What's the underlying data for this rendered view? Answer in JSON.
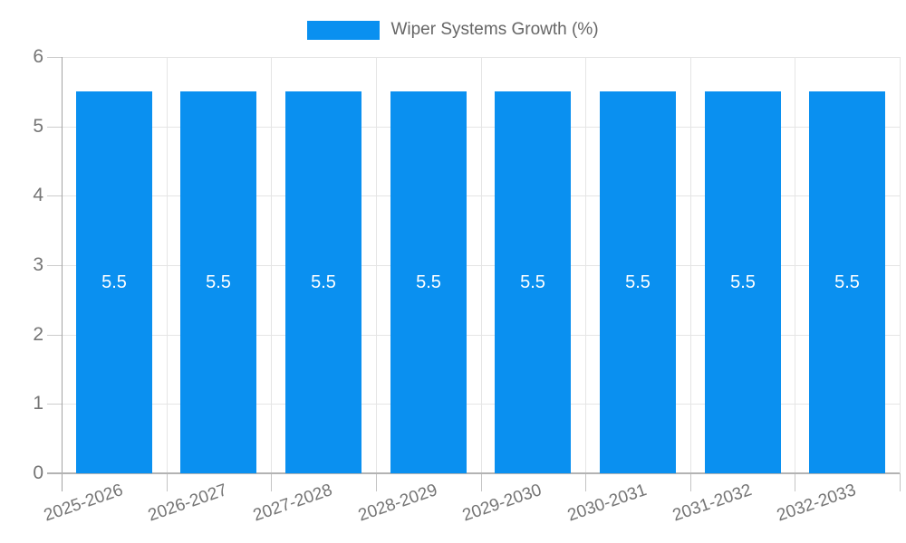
{
  "chart_data": {
    "type": "bar",
    "legend": [
      {
        "label": "Wiper Systems Growth (%)",
        "color": "#0a90f0"
      }
    ],
    "categories": [
      "2025-2026",
      "2026-2027",
      "2027-2028",
      "2028-2029",
      "2029-2030",
      "2030-2031",
      "2031-2032",
      "2032-2033"
    ],
    "series": [
      {
        "name": "Wiper Systems Growth (%)",
        "values": [
          5.5,
          5.5,
          5.5,
          5.5,
          5.5,
          5.5,
          5.5,
          5.5
        ]
      }
    ],
    "bar_value_labels": [
      "5.5",
      "5.5",
      "5.5",
      "5.5",
      "5.5",
      "5.5",
      "5.5",
      "5.5"
    ],
    "title": "",
    "xlabel": "",
    "ylabel": "",
    "ylim": [
      0,
      6
    ],
    "yticks": [
      0,
      1,
      2,
      3,
      4,
      5,
      6
    ],
    "grid": true,
    "legend_position": "top-center",
    "colors": {
      "bar": "#0a90f0",
      "legend_text": "#666666",
      "tick_text": "#757575",
      "gridline": "#e5e5e5",
      "axis_line": "#a3a3a3",
      "value_label_text": "#ffffff"
    }
  }
}
